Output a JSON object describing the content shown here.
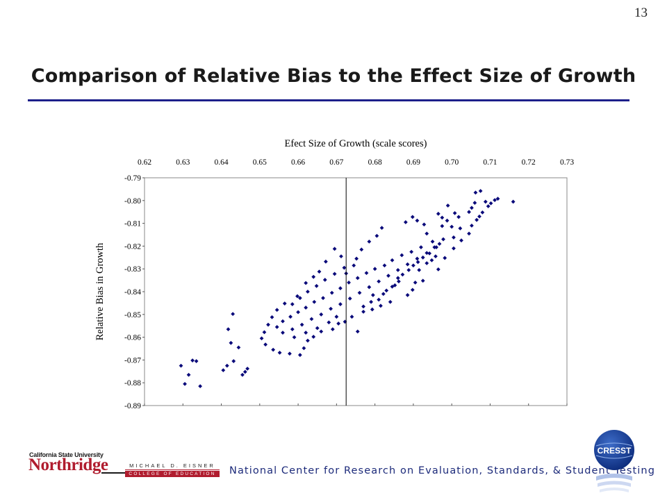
{
  "slide": {
    "page_number": "13",
    "title": "Comparison of Relative Bias to the Effect Size of Growth"
  },
  "colors": {
    "title_rule": "#1c1f8a",
    "marker": "#0a0a7a",
    "csun_red": "#b01c2e",
    "center_text": "#1c2a7a"
  },
  "chart_data": {
    "type": "scatter",
    "title": "",
    "xlabel": "Efect Size of Growth (scale scores)",
    "ylabel": "Relative Bias in Growth",
    "x_ticks": [
      "0.62",
      "0.63",
      "0.64",
      "0.65",
      "0.66",
      "0.67",
      "0.68",
      "0.69",
      "0.70",
      "0.71",
      "0.72",
      "0.73"
    ],
    "y_ticks": [
      "-0.89",
      "-0.88",
      "-0.87",
      "-0.86",
      "-0.85",
      "-0.84",
      "-0.83",
      "-0.82",
      "-0.81",
      "-0.80",
      "-0.79"
    ],
    "xlim": [
      0.62,
      0.73
    ],
    "ylim": [
      -0.79,
      -0.89
    ],
    "x_axis_position": "top",
    "y_axis_reversed": true,
    "grid": false,
    "legend": "none",
    "reference_line_x": 0.6725,
    "marker": "diamond",
    "series": [
      {
        "points": [
          [
            0.6305,
            -0.8805
          ],
          [
            0.6315,
            -0.8765
          ],
          [
            0.6295,
            -0.8725
          ],
          [
            0.6335,
            -0.8705
          ],
          [
            0.6345,
            -0.8815
          ],
          [
            0.6325,
            -0.8702
          ],
          [
            0.6405,
            -0.8745
          ],
          [
            0.6415,
            -0.8725
          ],
          [
            0.6432,
            -0.8705
          ],
          [
            0.6455,
            -0.8765
          ],
          [
            0.6462,
            -0.8752
          ],
          [
            0.6468,
            -0.8738
          ],
          [
            0.6425,
            -0.8625
          ],
          [
            0.6418,
            -0.8565
          ],
          [
            0.643,
            -0.8498
          ],
          [
            0.6445,
            -0.8645
          ],
          [
            0.6755,
            -0.8575
          ],
          [
            0.677,
            -0.8488
          ],
          [
            0.6793,
            -0.8478
          ],
          [
            0.6815,
            -0.8462
          ],
          [
            0.684,
            -0.8445
          ],
          [
            0.6795,
            -0.8415
          ],
          [
            0.6852,
            -0.8372
          ],
          [
            0.6862,
            -0.8355
          ],
          [
            0.6885,
            -0.8415
          ],
          [
            0.6898,
            -0.8392
          ],
          [
            0.6905,
            -0.836
          ],
          [
            0.6915,
            -0.8305
          ],
          [
            0.6925,
            -0.8352
          ],
          [
            0.6935,
            -0.8275
          ],
          [
            0.6948,
            -0.8262
          ],
          [
            0.6958,
            -0.8245
          ],
          [
            0.6965,
            -0.8302
          ],
          [
            0.6982,
            -0.8252
          ],
          [
            0.7005,
            -0.821
          ],
          [
            0.7025,
            -0.8175
          ],
          [
            0.7045,
            -0.8145
          ],
          [
            0.7052,
            -0.811
          ],
          [
            0.7065,
            -0.8085
          ],
          [
            0.7072,
            -0.807
          ],
          [
            0.708,
            -0.8052
          ],
          [
            0.7095,
            -0.8025
          ],
          [
            0.7102,
            -0.8012
          ],
          [
            0.7088,
            -0.8005
          ],
          [
            0.7112,
            -0.7998
          ],
          [
            0.712,
            -0.7992
          ],
          [
            0.7045,
            -0.805
          ],
          [
            0.7052,
            -0.8032
          ],
          [
            0.706,
            -0.801
          ],
          [
            0.7062,
            -0.7965
          ],
          [
            0.7075,
            -0.7958
          ],
          [
            0.716,
            -0.8005
          ],
          [
            0.7,
            -0.8115
          ],
          [
            0.6988,
            -0.8088
          ],
          [
            0.6975,
            -0.8075
          ],
          [
            0.6965,
            -0.8058
          ],
          [
            0.7008,
            -0.8055
          ],
          [
            0.699,
            -0.8022
          ],
          [
            0.7022,
            -0.8122
          ],
          [
            0.7005,
            -0.8162
          ],
          [
            0.6975,
            -0.8112
          ],
          [
            0.7018,
            -0.8072
          ],
          [
            0.6935,
            -0.8145
          ],
          [
            0.6928,
            -0.8105
          ],
          [
            0.691,
            -0.8088
          ],
          [
            0.6898,
            -0.8072
          ],
          [
            0.688,
            -0.8095
          ],
          [
            0.6818,
            -0.812
          ],
          [
            0.6805,
            -0.8155
          ],
          [
            0.6785,
            -0.818
          ],
          [
            0.6765,
            -0.8215
          ],
          [
            0.6752,
            -0.8255
          ],
          [
            0.6745,
            -0.8285
          ],
          [
            0.6725,
            -0.832
          ],
          [
            0.6712,
            -0.8245
          ],
          [
            0.6695,
            -0.8212
          ],
          [
            0.6672,
            -0.8268
          ],
          [
            0.6655,
            -0.8312
          ],
          [
            0.664,
            -0.8335
          ],
          [
            0.662,
            -0.8362
          ],
          [
            0.6598,
            -0.842
          ],
          [
            0.6565,
            -0.8452
          ],
          [
            0.6545,
            -0.848
          ],
          [
            0.6532,
            -0.8512
          ],
          [
            0.6522,
            -0.8545
          ],
          [
            0.6512,
            -0.8578
          ],
          [
            0.6505,
            -0.8605
          ],
          [
            0.6515,
            -0.8632
          ],
          [
            0.6535,
            -0.8655
          ],
          [
            0.6552,
            -0.8668
          ],
          [
            0.6578,
            -0.8672
          ],
          [
            0.6605,
            -0.8678
          ],
          [
            0.6615,
            -0.8648
          ],
          [
            0.6625,
            -0.8615
          ],
          [
            0.664,
            -0.8598
          ],
          [
            0.666,
            -0.8575
          ],
          [
            0.669,
            -0.8565
          ],
          [
            0.6705,
            -0.854
          ],
          [
            0.6722,
            -0.8532
          ],
          [
            0.674,
            -0.851
          ],
          [
            0.677,
            -0.8465
          ],
          [
            0.679,
            -0.8445
          ],
          [
            0.681,
            -0.8435
          ],
          [
            0.6822,
            -0.841
          ],
          [
            0.683,
            -0.8395
          ],
          [
            0.6845,
            -0.8378
          ],
          [
            0.686,
            -0.834
          ],
          [
            0.6872,
            -0.8325
          ],
          [
            0.6888,
            -0.8305
          ],
          [
            0.69,
            -0.8285
          ],
          [
            0.6912,
            -0.827
          ],
          [
            0.6925,
            -0.825
          ],
          [
            0.6942,
            -0.8232
          ],
          [
            0.6955,
            -0.8205
          ],
          [
            0.6968,
            -0.819
          ],
          [
            0.6978,
            -0.817
          ],
          [
            0.695,
            -0.818
          ],
          [
            0.692,
            -0.8205
          ],
          [
            0.6895,
            -0.8225
          ],
          [
            0.687,
            -0.824
          ],
          [
            0.6845,
            -0.8262
          ],
          [
            0.6825,
            -0.8285
          ],
          [
            0.68,
            -0.83
          ],
          [
            0.6778,
            -0.8318
          ],
          [
            0.6755,
            -0.834
          ],
          [
            0.6732,
            -0.836
          ],
          [
            0.671,
            -0.8385
          ],
          [
            0.6688,
            -0.8405
          ],
          [
            0.6665,
            -0.8428
          ],
          [
            0.6642,
            -0.8445
          ],
          [
            0.662,
            -0.847
          ],
          [
            0.66,
            -0.849
          ],
          [
            0.658,
            -0.851
          ],
          [
            0.656,
            -0.853
          ],
          [
            0.6545,
            -0.8555
          ],
          [
            0.656,
            -0.858
          ],
          [
            0.6585,
            -0.8565
          ],
          [
            0.661,
            -0.8545
          ],
          [
            0.6635,
            -0.852
          ],
          [
            0.666,
            -0.85
          ],
          [
            0.6685,
            -0.8475
          ],
          [
            0.671,
            -0.8455
          ],
          [
            0.6735,
            -0.843
          ],
          [
            0.676,
            -0.8405
          ],
          [
            0.6785,
            -0.838
          ],
          [
            0.681,
            -0.8355
          ],
          [
            0.6835,
            -0.833
          ],
          [
            0.686,
            -0.8305
          ],
          [
            0.6885,
            -0.828
          ],
          [
            0.691,
            -0.8255
          ],
          [
            0.6935,
            -0.823
          ],
          [
            0.696,
            -0.8205
          ],
          [
            0.672,
            -0.8295
          ],
          [
            0.6695,
            -0.8322
          ],
          [
            0.667,
            -0.8348
          ],
          [
            0.6648,
            -0.8375
          ],
          [
            0.6625,
            -0.84
          ],
          [
            0.6605,
            -0.8428
          ],
          [
            0.6585,
            -0.8455
          ],
          [
            0.659,
            -0.86
          ],
          [
            0.662,
            -0.858
          ],
          [
            0.665,
            -0.856
          ],
          [
            0.668,
            -0.8535
          ],
          [
            0.67,
            -0.851
          ]
        ]
      }
    ]
  },
  "footer": {
    "csun_line1": "California State University",
    "csun_line2": "Northridge",
    "eisner_name": "MICHAEL D. EISNER",
    "eisner_college": "COLLEGE OF EDUCATION",
    "center_name": "National Center for Research on Evaluation, Standards, & Student Testing",
    "cresst_logo_text": "CRESST"
  }
}
